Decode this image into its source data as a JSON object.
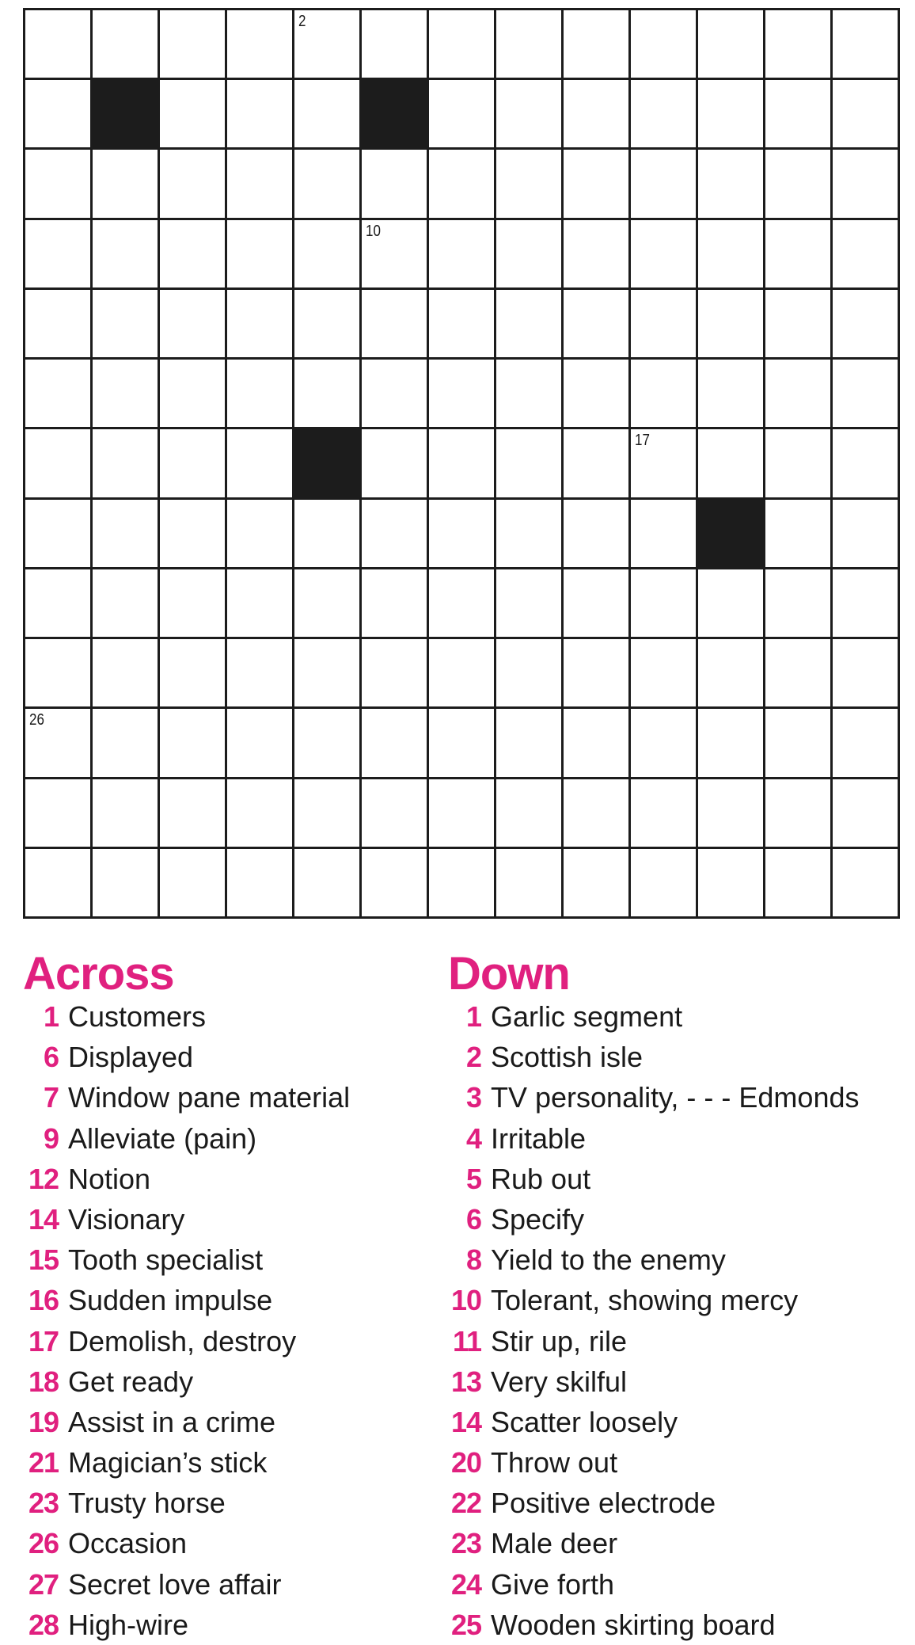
{
  "puzzle": {
    "rows": 13,
    "cols": 13,
    "black_cells": [
      [
        1,
        1
      ],
      [
        1,
        5
      ],
      [
        6,
        4
      ],
      [
        7,
        10
      ]
    ],
    "numbered_cells": [
      {
        "row": 0,
        "col": 4,
        "label": "2"
      },
      {
        "row": 3,
        "col": 5,
        "label": "10"
      },
      {
        "row": 6,
        "col": 9,
        "label": "17"
      },
      {
        "row": 10,
        "col": 0,
        "label": "26"
      }
    ]
  },
  "accent_color": "#e0207f",
  "across": {
    "title": "Across",
    "clues": [
      {
        "n": "1",
        "text": "Customers"
      },
      {
        "n": "6",
        "text": "Displayed"
      },
      {
        "n": "7",
        "text": "Window pane material"
      },
      {
        "n": "9",
        "text": "Alleviate (pain)"
      },
      {
        "n": "12",
        "text": "Notion"
      },
      {
        "n": "14",
        "text": "Visionary"
      },
      {
        "n": "15",
        "text": "Tooth specialist"
      },
      {
        "n": "16",
        "text": "Sudden impulse"
      },
      {
        "n": "17",
        "text": "Demolish, destroy"
      },
      {
        "n": "18",
        "text": "Get ready"
      },
      {
        "n": "19",
        "text": "Assist in a crime"
      },
      {
        "n": "21",
        "text": "Magician’s stick"
      },
      {
        "n": "23",
        "text": "Trusty horse"
      },
      {
        "n": "26",
        "text": "Occasion"
      },
      {
        "n": "27",
        "text": "Secret love affair"
      },
      {
        "n": "28",
        "text": "High-wire"
      }
    ]
  },
  "down": {
    "title": "Down",
    "clues": [
      {
        "n": "1",
        "text": "Garlic segment"
      },
      {
        "n": "2",
        "text": "Scottish isle"
      },
      {
        "n": "3",
        "text": "TV personality, - - - Edmonds"
      },
      {
        "n": "4",
        "text": "Irritable"
      },
      {
        "n": "5",
        "text": "Rub out"
      },
      {
        "n": "6",
        "text": "Specify"
      },
      {
        "n": "8",
        "text": "Yield to the enemy"
      },
      {
        "n": "10",
        "text": "Tolerant, showing mercy"
      },
      {
        "n": "11",
        "text": "Stir up, rile"
      },
      {
        "n": "13",
        "text": "Very skilful"
      },
      {
        "n": "14",
        "text": "Scatter loosely"
      },
      {
        "n": "20",
        "text": "Throw out"
      },
      {
        "n": "22",
        "text": "Positive electrode"
      },
      {
        "n": "23",
        "text": "Male deer"
      },
      {
        "n": "24",
        "text": "Give forth"
      },
      {
        "n": "25",
        "text": "Wooden skirting board"
      }
    ]
  }
}
